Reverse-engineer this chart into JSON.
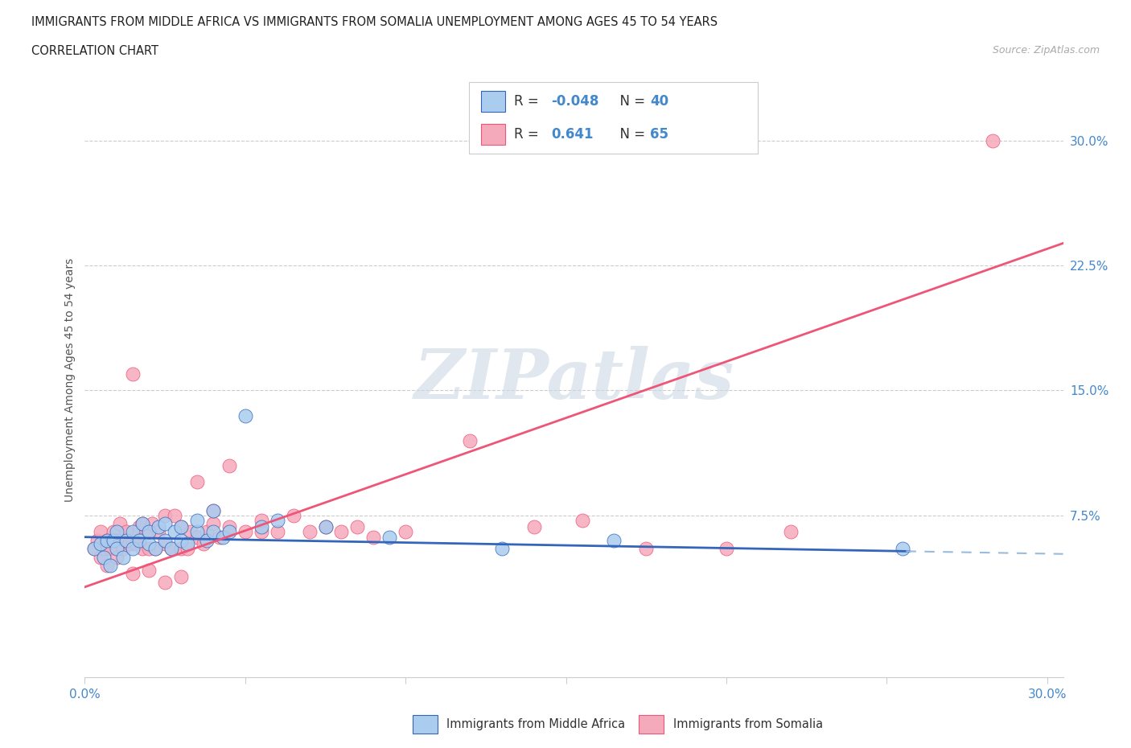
{
  "title_line1": "IMMIGRANTS FROM MIDDLE AFRICA VS IMMIGRANTS FROM SOMALIA UNEMPLOYMENT AMONG AGES 45 TO 54 YEARS",
  "title_line2": "CORRELATION CHART",
  "source_text": "Source: ZipAtlas.com",
  "ylabel": "Unemployment Among Ages 45 to 54 years",
  "xlim": [
    0.0,
    0.305
  ],
  "ylim": [
    -0.022,
    0.335
  ],
  "ytick_positions": [
    0.075,
    0.15,
    0.225,
    0.3
  ],
  "ytick_labels": [
    "7.5%",
    "15.0%",
    "22.5%",
    "30.0%"
  ],
  "blue_scatter_color": "#aaccee",
  "pink_scatter_color": "#f5aabb",
  "blue_line_color": "#3366bb",
  "pink_line_color": "#ee5577",
  "legend_r_blue": "-0.048",
  "legend_n_blue": "40",
  "legend_r_pink": "0.641",
  "legend_n_pink": "65",
  "legend_label_blue": "Immigrants from Middle Africa",
  "legend_label_pink": "Immigrants from Somalia",
  "watermark": "ZIPatlas",
  "blue_scatter_x": [
    0.003,
    0.005,
    0.006,
    0.007,
    0.008,
    0.009,
    0.01,
    0.01,
    0.012,
    0.013,
    0.015,
    0.015,
    0.017,
    0.018,
    0.02,
    0.02,
    0.022,
    0.023,
    0.025,
    0.025,
    0.027,
    0.028,
    0.03,
    0.03,
    0.032,
    0.035,
    0.035,
    0.038,
    0.04,
    0.04,
    0.043,
    0.045,
    0.05,
    0.055,
    0.06,
    0.075,
    0.095,
    0.13,
    0.165,
    0.255
  ],
  "blue_scatter_y": [
    0.055,
    0.058,
    0.05,
    0.06,
    0.045,
    0.06,
    0.055,
    0.065,
    0.05,
    0.06,
    0.055,
    0.065,
    0.06,
    0.07,
    0.058,
    0.065,
    0.055,
    0.068,
    0.06,
    0.07,
    0.055,
    0.065,
    0.06,
    0.068,
    0.058,
    0.065,
    0.072,
    0.06,
    0.065,
    0.078,
    0.062,
    0.065,
    0.135,
    0.068,
    0.072,
    0.068,
    0.062,
    0.055,
    0.06,
    0.055
  ],
  "pink_scatter_x": [
    0.003,
    0.004,
    0.005,
    0.005,
    0.006,
    0.007,
    0.007,
    0.008,
    0.009,
    0.01,
    0.01,
    0.011,
    0.012,
    0.013,
    0.014,
    0.015,
    0.015,
    0.016,
    0.017,
    0.018,
    0.018,
    0.02,
    0.02,
    0.021,
    0.022,
    0.023,
    0.025,
    0.025,
    0.027,
    0.028,
    0.03,
    0.03,
    0.032,
    0.033,
    0.035,
    0.035,
    0.037,
    0.038,
    0.04,
    0.04,
    0.042,
    0.045,
    0.045,
    0.05,
    0.055,
    0.055,
    0.06,
    0.065,
    0.07,
    0.075,
    0.08,
    0.085,
    0.09,
    0.1,
    0.12,
    0.14,
    0.155,
    0.175,
    0.2,
    0.22,
    0.015,
    0.02,
    0.025,
    0.03,
    0.283
  ],
  "pink_scatter_y": [
    0.055,
    0.06,
    0.05,
    0.065,
    0.055,
    0.045,
    0.06,
    0.055,
    0.065,
    0.05,
    0.06,
    0.07,
    0.055,
    0.065,
    0.058,
    0.06,
    0.16,
    0.058,
    0.068,
    0.055,
    0.07,
    0.055,
    0.065,
    0.07,
    0.055,
    0.065,
    0.058,
    0.075,
    0.055,
    0.075,
    0.055,
    0.068,
    0.055,
    0.065,
    0.062,
    0.095,
    0.058,
    0.065,
    0.07,
    0.078,
    0.062,
    0.068,
    0.105,
    0.065,
    0.065,
    0.072,
    0.065,
    0.075,
    0.065,
    0.068,
    0.065,
    0.068,
    0.062,
    0.065,
    0.12,
    0.068,
    0.072,
    0.055,
    0.055,
    0.065,
    0.04,
    0.042,
    0.035,
    0.038,
    0.3
  ],
  "blue_line_y_at_0": 0.062,
  "blue_line_y_at_30": 0.052,
  "pink_line_y_at_0": 0.032,
  "pink_line_y_at_30": 0.235
}
